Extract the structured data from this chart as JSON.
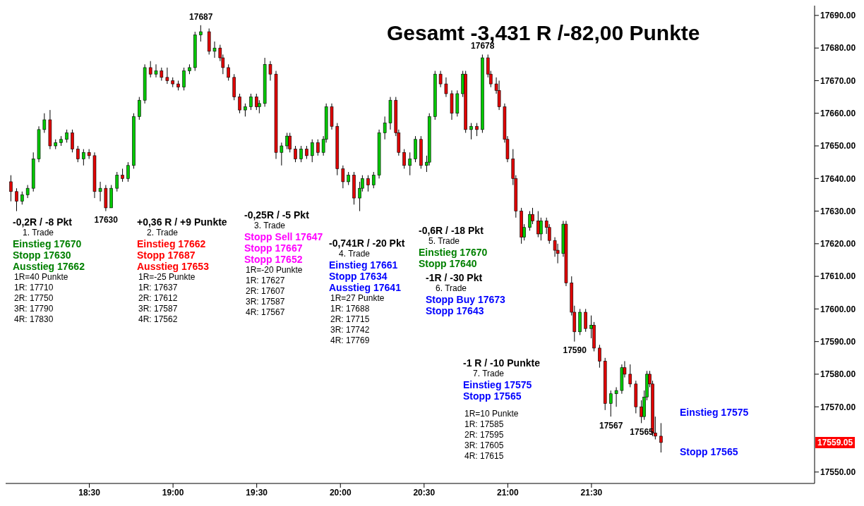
{
  "chart_data": {
    "type": "candlestick",
    "title": "Gesamt -3,431 R /-82,00 Punkte",
    "x": [
      18.033,
      18.067,
      18.1,
      18.133,
      18.167,
      18.2,
      18.233,
      18.267,
      18.3,
      18.333,
      18.367,
      18.4,
      18.433,
      18.467,
      18.5,
      18.533,
      18.567,
      18.6,
      18.633,
      18.667,
      18.7,
      18.733,
      18.767,
      18.8,
      18.833,
      18.867,
      18.9,
      18.933,
      18.967,
      19.0,
      19.033,
      19.067,
      19.1,
      19.133,
      19.167,
      19.217,
      19.25,
      19.283,
      19.3,
      19.333,
      19.367,
      19.4,
      19.433,
      19.467,
      19.5,
      19.517,
      19.55,
      19.583,
      19.617,
      19.65,
      19.683,
      19.7,
      19.733,
      19.767,
      19.8,
      19.833,
      19.867,
      19.9,
      19.917,
      19.95,
      19.983,
      20.017,
      20.05,
      20.083,
      20.117,
      20.133,
      20.167,
      20.2,
      20.233,
      20.267,
      20.3,
      20.333,
      20.35,
      20.383,
      20.417,
      20.45,
      20.483,
      20.517,
      20.533,
      20.567,
      20.6,
      20.633,
      20.667,
      20.7,
      20.733,
      20.75,
      20.783,
      20.817,
      20.85,
      20.883,
      20.9,
      20.933,
      20.95,
      20.983,
      21.0,
      21.033,
      21.05,
      21.083,
      21.1,
      21.133,
      21.15,
      21.183,
      21.2,
      21.233,
      21.25,
      21.283,
      21.3,
      21.333,
      21.35,
      21.383,
      21.4,
      21.433,
      21.467,
      21.5,
      21.517,
      21.55,
      21.583,
      21.617,
      21.65,
      21.683,
      21.7,
      21.733,
      21.767,
      21.8,
      21.817,
      21.833,
      21.85,
      21.867,
      21.883,
      21.917
    ],
    "ohlc": [
      [
        17639,
        17641,
        17633,
        17636
      ],
      [
        17636,
        17637,
        17630,
        17633
      ],
      [
        17633,
        17636,
        17632,
        17635
      ],
      [
        17635,
        17638,
        17634,
        17637
      ],
      [
        17637,
        17648,
        17636,
        17646
      ],
      [
        17646,
        17656,
        17645,
        17655
      ],
      [
        17655,
        17660,
        17654,
        17658
      ],
      [
        17658,
        17661,
        17649,
        17650
      ],
      [
        17650,
        17652,
        17649,
        17651
      ],
      [
        17651,
        17653,
        17650,
        17652
      ],
      [
        17652,
        17655,
        17651,
        17654
      ],
      [
        17654,
        17655,
        17648,
        17649
      ],
      [
        17649,
        17650,
        17645,
        17646
      ],
      [
        17646,
        17649,
        17644,
        17648
      ],
      [
        17648,
        17649,
        17646,
        17647
      ],
      [
        17647,
        17648,
        17634,
        17636
      ],
      [
        17636,
        17639,
        17633,
        17637
      ],
      [
        17637,
        17638,
        17630,
        17631
      ],
      [
        17631,
        17638,
        17631,
        17637
      ],
      [
        17637,
        17642,
        17636,
        17641
      ],
      [
        17641,
        17643,
        17639,
        17640
      ],
      [
        17640,
        17645,
        17639,
        17644
      ],
      [
        17644,
        17660,
        17643,
        17659
      ],
      [
        17659,
        17665,
        17658,
        17664
      ],
      [
        17664,
        17675,
        17663,
        17674
      ],
      [
        17674,
        17676,
        17671,
        17672
      ],
      [
        17672,
        17675,
        17671,
        17673
      ],
      [
        17673,
        17674,
        17670,
        17671
      ],
      [
        17671,
        17674,
        17669,
        17670
      ],
      [
        17670,
        17671,
        17668,
        17669
      ],
      [
        17669,
        17670,
        17667,
        17668
      ],
      [
        17668,
        17674,
        17667,
        17673
      ],
      [
        17673,
        17675,
        17672,
        17674
      ],
      [
        17674,
        17685,
        17673,
        17684
      ],
      [
        17684,
        17687,
        17682,
        17685
      ],
      [
        17685,
        17686,
        17678,
        17679
      ],
      [
        17679,
        17682,
        17677,
        17680
      ],
      [
        17680,
        17681,
        17676,
        17677
      ],
      [
        17677,
        17678,
        17672,
        17674
      ],
      [
        17674,
        17675,
        17670,
        17671
      ],
      [
        17671,
        17672,
        17664,
        17665
      ],
      [
        17665,
        17666,
        17660,
        17661
      ],
      [
        17661,
        17663,
        17659,
        17662
      ],
      [
        17662,
        17666,
        17661,
        17665
      ],
      [
        17665,
        17666,
        17661,
        17662
      ],
      [
        17662,
        17664,
        17660,
        17663
      ],
      [
        17663,
        17677,
        17662,
        17675
      ],
      [
        17675,
        17676,
        17670,
        17672
      ],
      [
        17672,
        17673,
        17646,
        17648
      ],
      [
        17648,
        17651,
        17644,
        17650
      ],
      [
        17650,
        17654,
        17649,
        17653
      ],
      [
        17653,
        17654,
        17648,
        17649
      ],
      [
        17649,
        17650,
        17645,
        17646
      ],
      [
        17646,
        17650,
        17645,
        17649
      ],
      [
        17649,
        17650,
        17646,
        17647
      ],
      [
        17647,
        17652,
        17645,
        17651
      ],
      [
        17651,
        17652,
        17647,
        17648
      ],
      [
        17648,
        17653,
        17647,
        17652
      ],
      [
        17652,
        17663,
        17651,
        17662
      ],
      [
        17662,
        17663,
        17655,
        17656
      ],
      [
        17656,
        17657,
        17641,
        17643
      ],
      [
        17643,
        17644,
        17637,
        17639
      ],
      [
        17639,
        17642,
        17638,
        17641
      ],
      [
        17641,
        17642,
        17632,
        17634
      ],
      [
        17634,
        17639,
        17630,
        17637
      ],
      [
        17637,
        17641,
        17636,
        17640
      ],
      [
        17640,
        17641,
        17636,
        17638
      ],
      [
        17638,
        17642,
        17637,
        17641
      ],
      [
        17641,
        17655,
        17640,
        17654
      ],
      [
        17654,
        17659,
        17652,
        17657
      ],
      [
        17657,
        17665,
        17655,
        17664
      ],
      [
        17664,
        17665,
        17653,
        17654
      ],
      [
        17654,
        17655,
        17647,
        17648
      ],
      [
        17648,
        17649,
        17643,
        17644
      ],
      [
        17644,
        17648,
        17641,
        17646
      ],
      [
        17646,
        17653,
        17645,
        17652
      ],
      [
        17652,
        17653,
        17643,
        17644
      ],
      [
        17644,
        17647,
        17642,
        17645
      ],
      [
        17645,
        17660,
        17644,
        17659
      ],
      [
        17659,
        17673,
        17658,
        17672
      ],
      [
        17672,
        17673,
        17668,
        17669
      ],
      [
        17669,
        17671,
        17665,
        17666
      ],
      [
        17666,
        17667,
        17658,
        17660
      ],
      [
        17660,
        17667,
        17659,
        17666
      ],
      [
        17666,
        17673,
        17665,
        17672
      ],
      [
        17672,
        17673,
        17654,
        17655
      ],
      [
        17655,
        17657,
        17652,
        17656
      ],
      [
        17656,
        17657,
        17653,
        17655
      ],
      [
        17655,
        17678,
        17654,
        17677
      ],
      [
        17677,
        17678,
        17671,
        17672
      ],
      [
        17672,
        17673,
        17668,
        17669
      ],
      [
        17669,
        17671,
        17666,
        17667
      ],
      [
        17667,
        17670,
        17661,
        17662
      ],
      [
        17662,
        17663,
        17651,
        17652
      ],
      [
        17652,
        17653,
        17645,
        17646
      ],
      [
        17646,
        17649,
        17638,
        17640
      ],
      [
        17640,
        17641,
        17628,
        17630
      ],
      [
        17630,
        17631,
        17620,
        17622
      ],
      [
        17622,
        17626,
        17621,
        17625
      ],
      [
        17625,
        17630,
        17624,
        17629
      ],
      [
        17629,
        17631,
        17626,
        17627
      ],
      [
        17627,
        17630,
        17622,
        17623
      ],
      [
        17623,
        17628,
        17621,
        17627
      ],
      [
        17627,
        17628,
        17623,
        17625
      ],
      [
        17625,
        17626,
        17620,
        17621
      ],
      [
        17621,
        17622,
        17616,
        17618
      ],
      [
        17618,
        17620,
        17614,
        17617
      ],
      [
        17617,
        17627,
        17616,
        17626
      ],
      [
        17626,
        17627,
        17607,
        17608
      ],
      [
        17608,
        17610,
        17598,
        17599
      ],
      [
        17599,
        17601,
        17590,
        17593
      ],
      [
        17593,
        17600,
        17592,
        17599
      ],
      [
        17599,
        17600,
        17593,
        17594
      ],
      [
        17594,
        17598,
        17591,
        17595
      ],
      [
        17595,
        17596,
        17587,
        17588
      ],
      [
        17588,
        17589,
        17582,
        17584
      ],
      [
        17584,
        17585,
        17569,
        17571
      ],
      [
        17571,
        17575,
        17567,
        17574
      ],
      [
        17574,
        17576,
        17570,
        17575
      ],
      [
        17575,
        17583,
        17574,
        17582
      ],
      [
        17582,
        17584,
        17579,
        17580
      ],
      [
        17580,
        17583,
        17576,
        17577
      ],
      [
        17577,
        17578,
        17568,
        17570
      ],
      [
        17570,
        17572,
        17565,
        17567
      ],
      [
        17567,
        17575,
        17566,
        17573
      ],
      [
        17573,
        17581,
        17572,
        17580
      ],
      [
        17580,
        17581,
        17576,
        17577
      ],
      [
        17577,
        17578,
        17561,
        17562
      ],
      [
        17562,
        17567,
        17560,
        17561
      ],
      [
        17561,
        17565,
        17556,
        17559.05
      ]
    ],
    "xlim": [
      18,
      22.833
    ],
    "xticks": [
      {
        "value": 18.5,
        "label": "18:30"
      },
      {
        "value": 19,
        "label": "19:00"
      },
      {
        "value": 19.5,
        "label": "19:30"
      },
      {
        "value": 20,
        "label": "20:00"
      },
      {
        "value": 20.5,
        "label": "20:30"
      },
      {
        "value": 21,
        "label": "21:00"
      },
      {
        "value": 21.5,
        "label": "21:30"
      }
    ],
    "ylim": [
      17546.5,
      17693
    ],
    "yticks": [
      {
        "value": 17550,
        "label": "17550.00"
      },
      {
        "value": 17570,
        "label": "17570.00"
      },
      {
        "value": 17580,
        "label": "17580.00"
      },
      {
        "value": 17590,
        "label": "17590.00"
      },
      {
        "value": 17600,
        "label": "17600.00"
      },
      {
        "value": 17610,
        "label": "17610.00"
      },
      {
        "value": 17620,
        "label": "17620.00"
      },
      {
        "value": 17630,
        "label": "17630.00"
      },
      {
        "value": 17640,
        "label": "17640.00"
      },
      {
        "value": 17650,
        "label": "17650.00"
      },
      {
        "value": 17660,
        "label": "17660.00"
      },
      {
        "value": 17670,
        "label": "17670.00"
      },
      {
        "value": 17680,
        "label": "17680.00"
      },
      {
        "value": 17690,
        "label": "17690.00"
      }
    ],
    "annotations": [
      "-0,2R / -8 Pkt\n1. Trade\nEinstieg 17670\nStopp 17630\nAusstieg 17662\n1R=40 Punkte\n1R: 17710\n2R: 17750\n3R: 17790\n4R: 17830",
      "+0,36 R / +9 Punkte\n2. Trade\nEinstieg 17662\nStopp 17687\nAusstieg 17653\n1R=-25 Punkte\n1R: 17637\n2R: 17612\n3R: 17587\n4R: 17562",
      "-0,25R / -5 Pkt\n3. Trade\nStopp Sell 17647\nStopp 17667\nStopp 17652\n1R=-20 Punkte\n1R: 17627\n2R: 17607\n3R: 17587\n4R: 17567",
      "-0,741R / -20 Pkt\n4. Trade\nEinstieg 17661\nStopp 17634\nAusstieg 17641\n1R=27 Punkte\n1R: 17688\n2R: 17715\n3R: 17742\n4R: 17769",
      "-0,6R / -18 Pkt\n5. Trade\nEinstieg 17670\nStopp 17640",
      "-1R / -30 Pkt\n6. Trade\nStopp Buy 17673\nStopp 17643",
      "-1 R / -10 Punkte\n7. Trade\nEinstieg 17575\nStopp 17565\n1R=10 Punkte\n1R: 17585\n2R: 17595\n3R: 17605\n4R: 17615",
      {
        "text": "17687",
        "x": 19.167,
        "y": 17687
      },
      {
        "text": "17630",
        "x": 18.6,
        "y": 17630
      },
      {
        "text": "17678",
        "x": 20.85,
        "y": 17678
      },
      {
        "text": "17590",
        "x": 21.4,
        "y": 17590
      },
      {
        "text": "17567",
        "x": 21.617,
        "y": 17567
      },
      {
        "text": "17565",
        "x": 21.8,
        "y": 17565
      },
      "17559.05",
      "Einstieg 17575",
      "Stopp 17565"
    ]
  }
}
